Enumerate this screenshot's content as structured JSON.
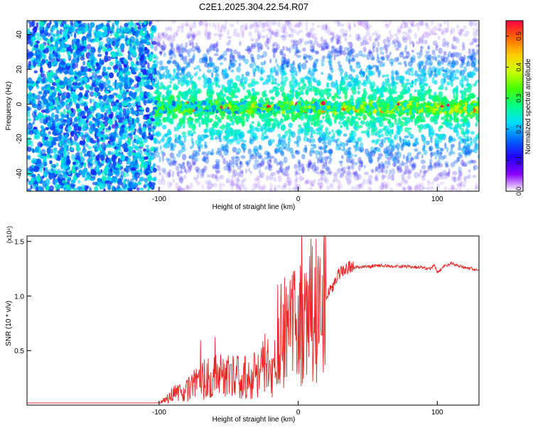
{
  "title": "C2E1.2025.304.22.54.R07",
  "chart_data": [
    {
      "type": "heatmap",
      "xlabel": "Height of straight line (km)",
      "ylabel": "Frequency (Hz)",
      "xlim": [
        -195,
        130
      ],
      "ylim": [
        -50,
        48
      ],
      "xticks": [
        -100,
        0,
        100
      ],
      "yticks": [
        -40,
        -20,
        0,
        20,
        40
      ],
      "colorbar": {
        "label": "Normalized spectral amplitude",
        "range": [
          0,
          0.55
        ],
        "ticks": [
          "0.0",
          "0.1",
          "0.2",
          "0.3",
          "0.4",
          "0.5"
        ],
        "colors": [
          "#ffffff",
          "#8800ff",
          "#2200ff",
          "#0066ff",
          "#00ddff",
          "#00ff88",
          "#44ff00",
          "#ccff00",
          "#ffcc00",
          "#ff6600",
          "#ff0044"
        ]
      },
      "noise_region_end_km": -103,
      "signal_band_center_hz": -2
    },
    {
      "type": "line",
      "xlabel": "Height of straight line (km)",
      "ylabel": "SNR (10 * v/v)",
      "yscale_label": "(x10⁴)",
      "xlim": [
        -195,
        130
      ],
      "ylim": [
        0,
        1.55
      ],
      "xticks": [
        -100,
        0,
        100
      ],
      "yticks": [
        "0.5",
        "1.0",
        "1.5"
      ],
      "color": "#ee2222",
      "series": [
        {
          "x": [
            -195,
            -110,
            -100,
            -95,
            -90,
            -85,
            -80,
            -75,
            -70,
            -65,
            -60,
            -55,
            -50,
            -45,
            -40,
            -35,
            -30,
            -25,
            -20,
            -15,
            -10,
            -5,
            0,
            5,
            10,
            15,
            20,
            25,
            30,
            35,
            40,
            50,
            60,
            70,
            80,
            90,
            95,
            98,
            100,
            105,
            110,
            120,
            130
          ],
          "values": [
            0.01,
            0.01,
            0.02,
            0.05,
            0.1,
            0.12,
            0.15,
            0.18,
            0.22,
            0.25,
            0.25,
            0.28,
            0.27,
            0.25,
            0.3,
            0.22,
            0.3,
            0.4,
            0.25,
            0.4,
            0.68,
            0.7,
            0.78,
            0.82,
            0.85,
            0.9,
            0.97,
            1.1,
            1.22,
            1.26,
            1.26,
            1.27,
            1.28,
            1.27,
            1.27,
            1.26,
            1.25,
            1.28,
            1.22,
            1.27,
            1.3,
            1.26,
            1.24
          ]
        }
      ]
    }
  ]
}
